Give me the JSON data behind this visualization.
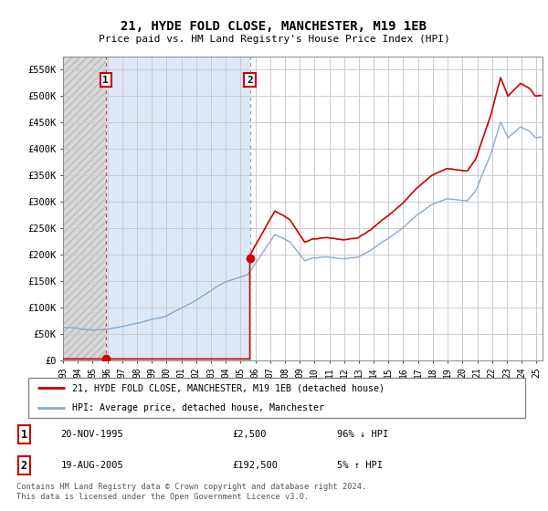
{
  "title": "21, HYDE FOLD CLOSE, MANCHESTER, M19 1EB",
  "subtitle": "Price paid vs. HM Land Registry's House Price Index (HPI)",
  "ylim": [
    0,
    575000
  ],
  "yticks": [
    0,
    50000,
    100000,
    150000,
    200000,
    250000,
    300000,
    350000,
    400000,
    450000,
    500000,
    550000
  ],
  "ytick_labels": [
    "£0",
    "£50K",
    "£100K",
    "£150K",
    "£200K",
    "£250K",
    "£300K",
    "£350K",
    "£400K",
    "£450K",
    "£500K",
    "£550K"
  ],
  "sale1_year": 1995,
  "sale1_month": 11,
  "sale1_day": 20,
  "sale1_price": 2500,
  "sale2_year": 2005,
  "sale2_month": 8,
  "sale2_day": 19,
  "sale2_price": 192500,
  "legend_line1": "21, HYDE FOLD CLOSE, MANCHESTER, M19 1EB (detached house)",
  "legend_line2": "HPI: Average price, detached house, Manchester",
  "footer": "Contains HM Land Registry data © Crown copyright and database right 2024.\nThis data is licensed under the Open Government Licence v3.0.",
  "line_color_red": "#cc0000",
  "line_color_blue": "#88aacc",
  "grid_color": "#cccccc",
  "xmin_year": 1993,
  "xmax_year": 2025,
  "xtick_years": [
    1993,
    1994,
    1995,
    1996,
    1997,
    1998,
    1999,
    2000,
    2001,
    2002,
    2003,
    2004,
    2005,
    2006,
    2007,
    2008,
    2009,
    2010,
    2011,
    2012,
    2013,
    2014,
    2015,
    2016,
    2017,
    2018,
    2019,
    2020,
    2021,
    2022,
    2023,
    2024,
    2025
  ]
}
